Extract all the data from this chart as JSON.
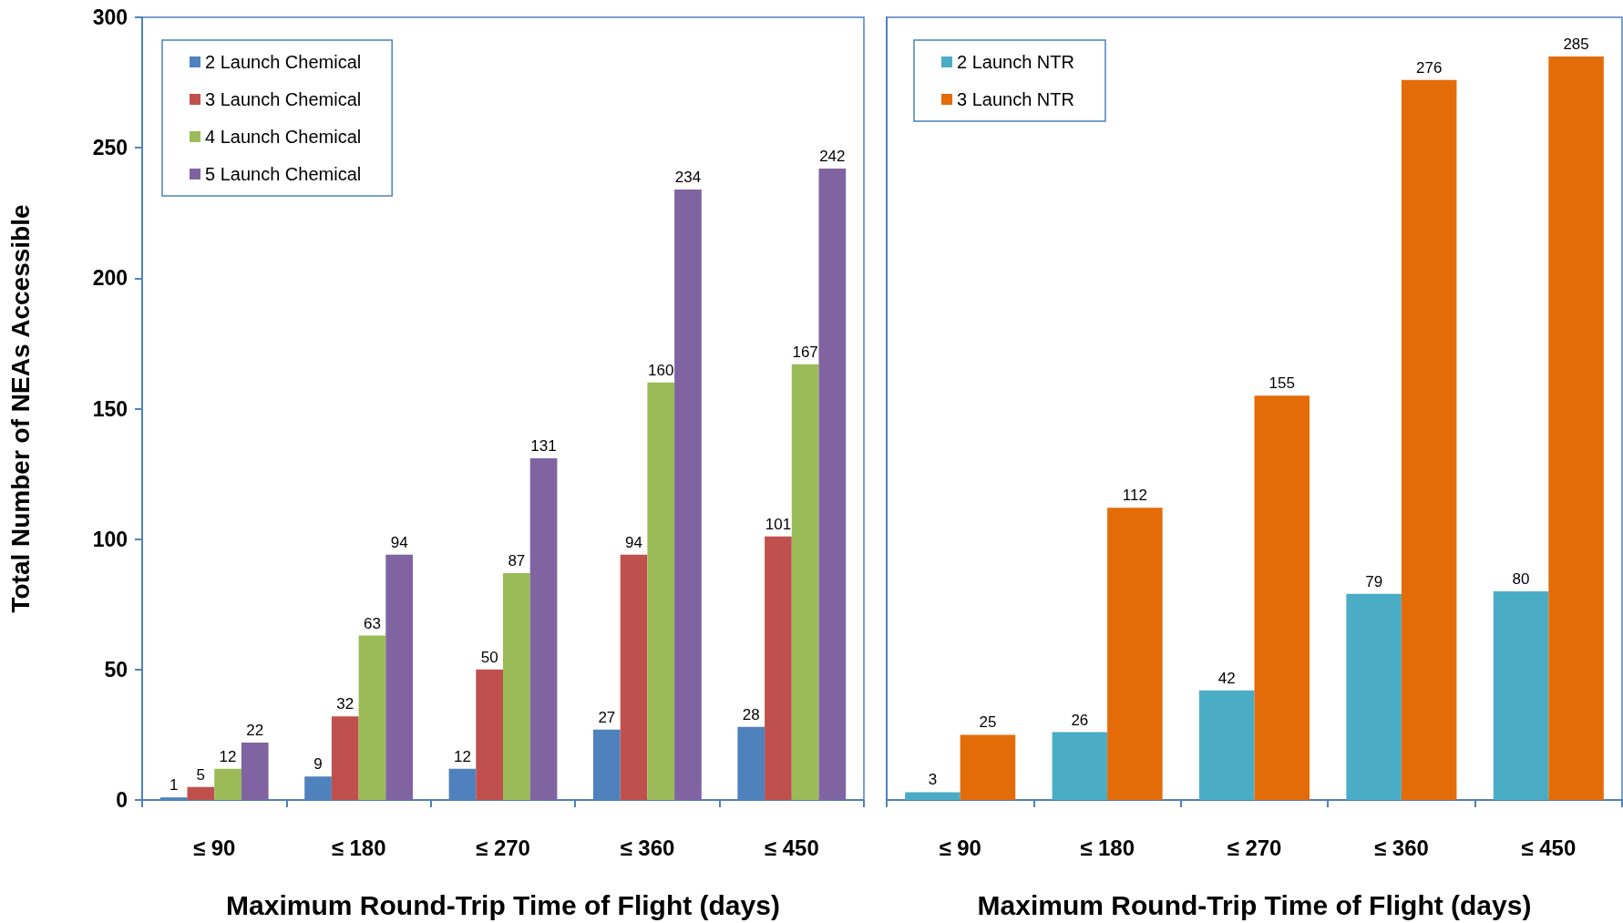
{
  "chart_data": [
    {
      "type": "bar",
      "categories": [
        "≤ 90",
        "≤ 180",
        "≤ 270",
        "≤ 360",
        "≤ 450"
      ],
      "xlabel": "Maximum Round-Trip Time of Flight (days)",
      "ylabel": "Total Number of NEAs Accessible",
      "ylim": [
        0,
        300
      ],
      "yticks": [
        0,
        50,
        100,
        150,
        200,
        250,
        300
      ],
      "grid": false,
      "legend": "top left",
      "data_labels": true,
      "series": [
        {
          "name": "2 Launch Chemical",
          "color": "#4f81bd",
          "values": [
            1,
            9,
            12,
            27,
            28
          ]
        },
        {
          "name": "3 Launch Chemical",
          "color": "#c0504d",
          "values": [
            5,
            32,
            50,
            94,
            101
          ]
        },
        {
          "name": "4 Launch Chemical",
          "color": "#9bbb59",
          "values": [
            12,
            63,
            87,
            160,
            167
          ]
        },
        {
          "name": "5 Launch Chemical",
          "color": "#8064a2",
          "values": [
            22,
            94,
            131,
            234,
            242
          ]
        }
      ]
    },
    {
      "type": "bar",
      "categories": [
        "≤ 90",
        "≤ 180",
        "≤ 270",
        "≤ 360",
        "≤ 450"
      ],
      "xlabel": "Maximum Round-Trip Time of Flight (days)",
      "ylim": [
        0,
        300
      ],
      "tick_labels": "x",
      "grid": false,
      "legend": "top left",
      "data_labels": true,
      "series": [
        {
          "name": "2 Launch NTR",
          "color": "#4bacc6",
          "values": [
            3,
            26,
            42,
            79,
            80
          ]
        },
        {
          "name": "3 Launch NTR",
          "color": "#e36c09",
          "values": [
            25,
            112,
            155,
            276,
            285
          ]
        }
      ]
    }
  ]
}
